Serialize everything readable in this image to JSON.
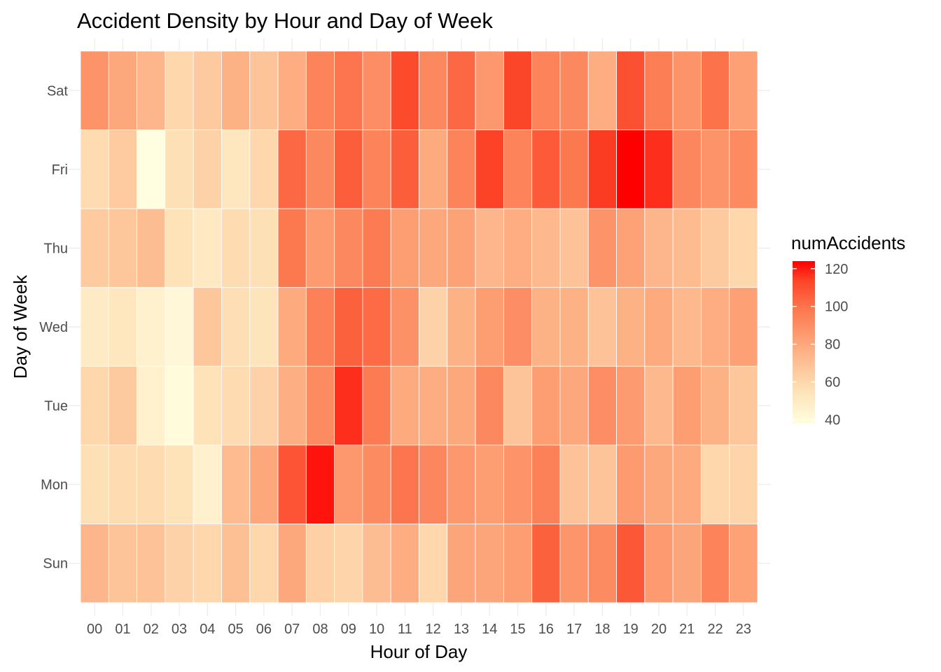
{
  "chart_data": {
    "type": "heatmap",
    "title": "Accident Density by Hour and Day of Week",
    "xlabel": "Hour of Day",
    "ylabel": "Day of Week",
    "x": [
      "00",
      "01",
      "02",
      "03",
      "04",
      "05",
      "06",
      "07",
      "08",
      "09",
      "10",
      "11",
      "12",
      "13",
      "14",
      "15",
      "16",
      "17",
      "18",
      "19",
      "20",
      "21",
      "22",
      "23"
    ],
    "y": [
      "Sat",
      "Fri",
      "Thu",
      "Wed",
      "Tue",
      "Mon",
      "Sun"
    ],
    "values": [
      [
        88,
        80,
        74,
        60,
        66,
        76,
        68,
        78,
        94,
        99,
        90,
        112,
        92,
        103,
        86,
        113,
        94,
        92,
        78,
        110,
        96,
        88,
        100,
        83
      ],
      [
        58,
        65,
        38,
        56,
        62,
        52,
        60,
        103,
        92,
        106,
        94,
        106,
        79,
        94,
        114,
        94,
        107,
        98,
        115,
        124,
        117,
        93,
        88,
        91
      ],
      [
        65,
        67,
        71,
        55,
        51,
        58,
        56,
        98,
        85,
        92,
        97,
        84,
        80,
        82,
        74,
        78,
        73,
        69,
        88,
        82,
        74,
        72,
        66,
        60
      ],
      [
        50,
        52,
        46,
        42,
        67,
        57,
        54,
        79,
        95,
        105,
        102,
        89,
        62,
        76,
        84,
        90,
        76,
        76,
        69,
        76,
        79,
        73,
        78,
        83
      ],
      [
        60,
        66,
        46,
        40,
        55,
        58,
        62,
        77,
        91,
        117,
        97,
        79,
        78,
        80,
        92,
        68,
        84,
        80,
        90,
        85,
        73,
        84,
        76,
        67
      ],
      [
        56,
        58,
        58,
        55,
        46,
        72,
        80,
        109,
        121,
        86,
        91,
        99,
        93,
        86,
        84,
        88,
        95,
        69,
        68,
        85,
        80,
        79,
        60,
        61
      ],
      [
        74,
        68,
        69,
        62,
        60,
        70,
        60,
        80,
        63,
        61,
        71,
        78,
        60,
        81,
        81,
        84,
        105,
        87,
        91,
        108,
        85,
        81,
        94,
        82
      ]
    ],
    "legend": {
      "title": "numAccidents",
      "ticks": [
        40,
        60,
        80,
        100,
        120
      ],
      "range": [
        38,
        124
      ],
      "low_color": "#fffee0",
      "high_color": "#ff0000"
    },
    "grid": true
  }
}
